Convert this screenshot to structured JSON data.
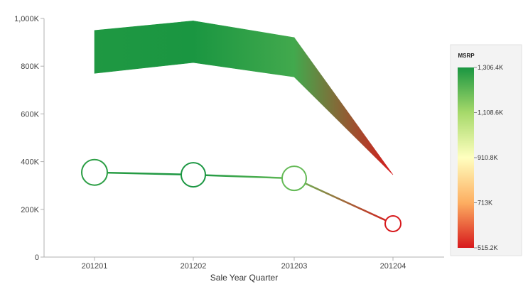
{
  "chart_data": {
    "type": "line",
    "title": "",
    "xlabel": "Sale Year Quarter",
    "ylabel": "",
    "categories": [
      "201201",
      "201202",
      "201203",
      "201204"
    ],
    "ylim": [
      0,
      1000000
    ],
    "yticks": [
      0,
      200000,
      400000,
      600000,
      800000,
      1000000
    ],
    "ytick_labels": [
      "0",
      "200K",
      "400K",
      "600K",
      "800K",
      "1,000K"
    ],
    "grid": false,
    "series": [
      {
        "kind": "range-area",
        "low": [
          770000,
          815000,
          755000,
          345000
        ],
        "high": [
          950000,
          990000,
          920000,
          345000
        ],
        "color_values": [
          1300000,
          1306400,
          1250000,
          515200
        ]
      },
      {
        "kind": "line-with-markers",
        "values": [
          355000,
          345000,
          330000,
          140000
        ],
        "color_values": [
          1280000,
          1306400,
          1200000,
          515200
        ]
      }
    ],
    "legend": {
      "title": "MSRP",
      "position": "right",
      "labels": [
        "1,306.4K",
        "1,108.6K",
        "910.8K",
        "713K",
        "515.2K"
      ],
      "min": 515200,
      "max": 1306400,
      "colors": {
        "high": "#1a9641",
        "upper_mid": "#a6d96a",
        "mid": "#ffffbf",
        "lower_mid": "#fdae61",
        "low": "#d7191c"
      }
    }
  }
}
